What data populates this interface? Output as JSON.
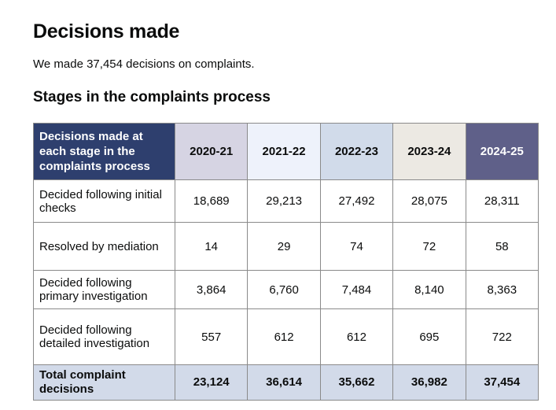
{
  "title": "Decisions made",
  "summary": "We made 37,454 decisions on complaints.",
  "section_title": "Stages in the complaints process",
  "table": {
    "corner_header": "Decisions made at each stage in the complaints process",
    "columns": [
      {
        "label": "2020-21",
        "bg": "#d6d4e3",
        "fg": "#0b0c0c"
      },
      {
        "label": "2021-22",
        "bg": "#eef2fb",
        "fg": "#0b0c0c"
      },
      {
        "label": "2022-23",
        "bg": "#d1dbea",
        "fg": "#0b0c0c"
      },
      {
        "label": "2023-24",
        "bg": "#ece9e3",
        "fg": "#0b0c0c"
      },
      {
        "label": "2024-25",
        "bg": "#5f6089",
        "fg": "#ffffff"
      }
    ],
    "rows": [
      {
        "label": "Decided following initial checks",
        "values": [
          "18,689",
          "29,213",
          "27,492",
          "28,075",
          "28,311"
        ]
      },
      {
        "label": "Resolved by mediation",
        "values": [
          "14",
          "29",
          "74",
          "72",
          "58"
        ]
      },
      {
        "label": "Decided following primary investigation",
        "values": [
          "3,864",
          "6,760",
          "7,484",
          "8,140",
          "8,363"
        ]
      },
      {
        "label": "Decided following detailed investigation",
        "values": [
          "557",
          "612",
          "612",
          "695",
          "722"
        ]
      }
    ],
    "total": {
      "label": "Total complaint decisions",
      "values": [
        "23,124",
        "36,614",
        "35,662",
        "36,982",
        "37,454"
      ],
      "bg": "#d2dae9"
    }
  }
}
